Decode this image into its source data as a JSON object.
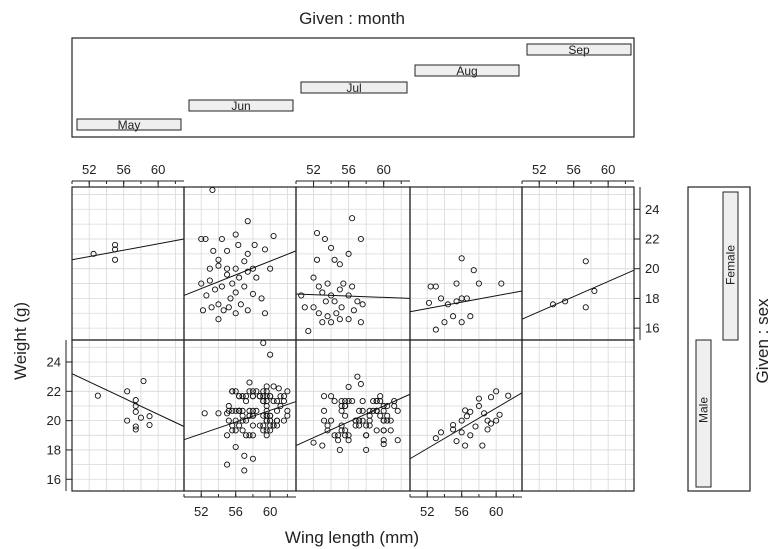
{
  "chart_data": {
    "type": "scatter",
    "title_top": "Given : month",
    "xlabel": "Wing length (mm)",
    "ylabel": "Weight (g)",
    "side_label": "Given : sex",
    "xlim": [
      50,
      63
    ],
    "ylim": [
      15.2,
      25.5
    ],
    "x_ticks": [
      52,
      56,
      60
    ],
    "y_ticks": [
      16,
      18,
      20,
      22,
      24
    ],
    "months": [
      "May",
      "Jun",
      "Jul",
      "Aug",
      "Sep"
    ],
    "sexes": [
      "Male",
      "Female"
    ],
    "grid": true,
    "panels": [
      {
        "sex": "Female",
        "month": "May",
        "fit": [
          [
            50,
            20.6
          ],
          [
            63,
            22.0
          ]
        ],
        "points": [
          [
            52.5,
            21.0
          ],
          [
            55.0,
            21.6
          ],
          [
            55.0,
            21.3
          ],
          [
            55.0,
            20.6
          ]
        ]
      },
      {
        "sex": "Female",
        "month": "Jun",
        "fit": [
          [
            50,
            18.2
          ],
          [
            63,
            21.2
          ]
        ],
        "points": [
          [
            53.3,
            25.3
          ],
          [
            52.0,
            22.0
          ],
          [
            52.5,
            22.0
          ],
          [
            53.4,
            21.2
          ],
          [
            54.0,
            20.6
          ],
          [
            54.4,
            22.0
          ],
          [
            55.0,
            21.2
          ],
          [
            56.0,
            22.3
          ],
          [
            56.3,
            21.6
          ],
          [
            57.0,
            20.5
          ],
          [
            57.4,
            21.0
          ],
          [
            57.4,
            23.2
          ],
          [
            58.2,
            21.6
          ],
          [
            59.4,
            21.3
          ],
          [
            60.0,
            20.0
          ],
          [
            60.4,
            22.2
          ],
          [
            52.0,
            19.0
          ],
          [
            52.6,
            18.2
          ],
          [
            53.0,
            19.2
          ],
          [
            53.6,
            18.6
          ],
          [
            54.0,
            17.6
          ],
          [
            54.4,
            18.8
          ],
          [
            55.0,
            19.6
          ],
          [
            55.4,
            18.0
          ],
          [
            55.6,
            19.0
          ],
          [
            56.0,
            18.4
          ],
          [
            56.4,
            19.4
          ],
          [
            57.0,
            18.8
          ],
          [
            57.4,
            19.8
          ],
          [
            58.0,
            18.3
          ],
          [
            58.4,
            19.4
          ],
          [
            59.0,
            18.0
          ],
          [
            52.2,
            17.2
          ],
          [
            53.2,
            17.4
          ],
          [
            54.0,
            16.6
          ],
          [
            54.6,
            17.2
          ],
          [
            55.2,
            17.4
          ],
          [
            56.0,
            17.0
          ],
          [
            56.6,
            17.6
          ],
          [
            57.4,
            17.2
          ],
          [
            59.4,
            17.0
          ],
          [
            53.0,
            20.0
          ],
          [
            54.0,
            20.2
          ],
          [
            55.0,
            20.0
          ],
          [
            56.0,
            20.0
          ],
          [
            58.0,
            20.0
          ]
        ]
      },
      {
        "sex": "Female",
        "month": "Jul",
        "fit": [
          [
            50,
            18.3
          ],
          [
            63,
            18.0
          ]
        ],
        "points": [
          [
            52.4,
            20.6
          ],
          [
            53.3,
            22.0
          ],
          [
            54.0,
            21.4
          ],
          [
            54.4,
            20.6
          ],
          [
            55.0,
            20.3
          ],
          [
            56.0,
            21.0
          ],
          [
            56.4,
            23.4
          ],
          [
            57.4,
            22.0
          ],
          [
            52.0,
            19.4
          ],
          [
            52.6,
            18.8
          ],
          [
            53.0,
            18.4
          ],
          [
            53.6,
            19.0
          ],
          [
            54.0,
            18.2
          ],
          [
            54.4,
            17.8
          ],
          [
            55.0,
            18.6
          ],
          [
            55.4,
            19.0
          ],
          [
            56.0,
            18.2
          ],
          [
            56.4,
            18.8
          ],
          [
            57.0,
            17.8
          ],
          [
            57.6,
            17.6
          ],
          [
            52.0,
            17.4
          ],
          [
            52.6,
            17.0
          ],
          [
            53.0,
            16.4
          ],
          [
            53.6,
            16.8
          ],
          [
            54.0,
            16.4
          ],
          [
            54.6,
            17.0
          ],
          [
            55.2,
            17.4
          ],
          [
            56.0,
            16.6
          ],
          [
            56.6,
            17.2
          ],
          [
            57.4,
            16.4
          ],
          [
            51.4,
            15.8
          ],
          [
            51.0,
            17.4
          ],
          [
            50.6,
            18.2
          ],
          [
            52.4,
            22.4
          ],
          [
            53.4,
            17.8
          ],
          [
            55.0,
            16.6
          ]
        ]
      },
      {
        "sex": "Female",
        "month": "Aug",
        "fit": [
          [
            50,
            17.1
          ],
          [
            63,
            18.5
          ]
        ],
        "points": [
          [
            56.0,
            20.7
          ],
          [
            57.4,
            19.9
          ],
          [
            55.4,
            19.0
          ],
          [
            53.0,
            18.8
          ],
          [
            52.4,
            18.8
          ],
          [
            58.0,
            19.0
          ],
          [
            60.6,
            19.0
          ],
          [
            53.6,
            18.0
          ],
          [
            54.4,
            17.6
          ],
          [
            55.4,
            17.8
          ],
          [
            56.0,
            18.0
          ],
          [
            56.6,
            18.0
          ],
          [
            52.2,
            17.7
          ],
          [
            55.0,
            16.8
          ],
          [
            56.0,
            16.4
          ],
          [
            57.0,
            16.8
          ],
          [
            54.0,
            16.4
          ],
          [
            53.0,
            15.9
          ]
        ]
      },
      {
        "sex": "Female",
        "month": "Sep",
        "fit": [
          [
            50,
            16.6
          ],
          [
            63,
            19.9
          ]
        ],
        "points": [
          [
            57.4,
            20.5
          ],
          [
            58.4,
            18.5
          ],
          [
            57.4,
            17.4
          ],
          [
            53.6,
            17.6
          ],
          [
            55.0,
            17.8
          ]
        ]
      },
      {
        "sex": "Male",
        "month": "May",
        "fit": [
          [
            50,
            23.2
          ],
          [
            63,
            19.6
          ]
        ],
        "points": [
          [
            53.0,
            21.7
          ],
          [
            56.4,
            22.0
          ],
          [
            58.3,
            22.7
          ],
          [
            57.4,
            21.4
          ],
          [
            57.4,
            21.0
          ],
          [
            57.4,
            20.6
          ],
          [
            58.0,
            20.2
          ],
          [
            59.0,
            20.3
          ],
          [
            59.0,
            19.7
          ],
          [
            57.4,
            19.6
          ],
          [
            57.4,
            19.4
          ],
          [
            56.4,
            20.0
          ]
        ]
      },
      {
        "sex": "Male",
        "month": "Jun",
        "fit": [
          [
            50,
            18.7
          ],
          [
            63,
            21.3
          ]
        ],
        "points": [
          [
            59.2,
            25.3
          ],
          [
            60.0,
            24.5
          ],
          [
            57.6,
            22.6
          ],
          [
            61.0,
            22.2
          ],
          [
            62.0,
            22.0
          ],
          [
            52.4,
            20.5
          ],
          [
            54.0,
            20.5
          ],
          [
            55.0,
            20.5
          ],
          [
            55.0,
            19.0
          ],
          [
            56.0,
            18.2
          ],
          [
            57.0,
            17.6
          ],
          [
            57.0,
            16.6
          ],
          [
            58.0,
            17.4
          ],
          [
            55.0,
            17.0
          ]
        ],
        "clusters": [
          {
            "x": [
              55.0,
              62.0
            ],
            "y": [
              19.0,
              22.2
            ],
            "n": 90
          }
        ]
      },
      {
        "sex": "Male",
        "month": "Jul",
        "fit": [
          [
            50,
            18.3
          ],
          [
            63,
            21.8
          ]
        ],
        "points": [
          [
            57.0,
            23.0
          ],
          [
            57.4,
            22.5
          ],
          [
            56.0,
            22.3
          ],
          [
            53.0,
            18.3
          ],
          [
            55.0,
            18.0
          ],
          [
            58.0,
            18.0
          ],
          [
            60.0,
            18.4
          ],
          [
            52.0,
            18.5
          ]
        ],
        "clusters": [
          {
            "x": [
              53.0,
              62.0
            ],
            "y": [
              18.7,
              21.6
            ],
            "n": 70
          }
        ]
      },
      {
        "sex": "Male",
        "month": "Aug",
        "fit": [
          [
            50,
            17.4
          ],
          [
            63,
            21.9
          ]
        ],
        "points": [
          [
            60.0,
            22.0
          ],
          [
            59.4,
            21.6
          ],
          [
            58.0,
            21.5
          ],
          [
            61.4,
            21.7
          ],
          [
            58.0,
            21.0
          ],
          [
            56.4,
            20.7
          ],
          [
            57.0,
            20.6
          ],
          [
            58.6,
            20.5
          ],
          [
            56.6,
            20.3
          ],
          [
            59.0,
            20.0
          ],
          [
            56.0,
            20.0
          ],
          [
            57.6,
            19.6
          ],
          [
            55.0,
            19.7
          ],
          [
            56.0,
            19.2
          ],
          [
            57.0,
            19.0
          ],
          [
            55.0,
            19.4
          ],
          [
            53.6,
            19.2
          ],
          [
            53.0,
            18.8
          ],
          [
            55.4,
            18.6
          ],
          [
            56.4,
            18.3
          ],
          [
            58.4,
            18.3
          ],
          [
            59.0,
            19.4
          ],
          [
            60.0,
            20.0
          ],
          [
            59.4,
            19.8
          ],
          [
            60.4,
            20.4
          ]
        ]
      },
      {
        "sex": "Male",
        "month": "Sep",
        "fit": null,
        "points": []
      }
    ],
    "sex_bars": [
      {
        "label": "Male",
        "range": [
          0.0,
          0.5
        ]
      },
      {
        "label": "Female",
        "range": [
          0.5,
          1.0
        ]
      }
    ],
    "month_bars": [
      {
        "label": "May",
        "index": 0
      },
      {
        "label": "Jun",
        "index": 1
      },
      {
        "label": "Jul",
        "index": 2
      },
      {
        "label": "Aug",
        "index": 3
      },
      {
        "label": "Sep",
        "index": 4
      }
    ]
  }
}
